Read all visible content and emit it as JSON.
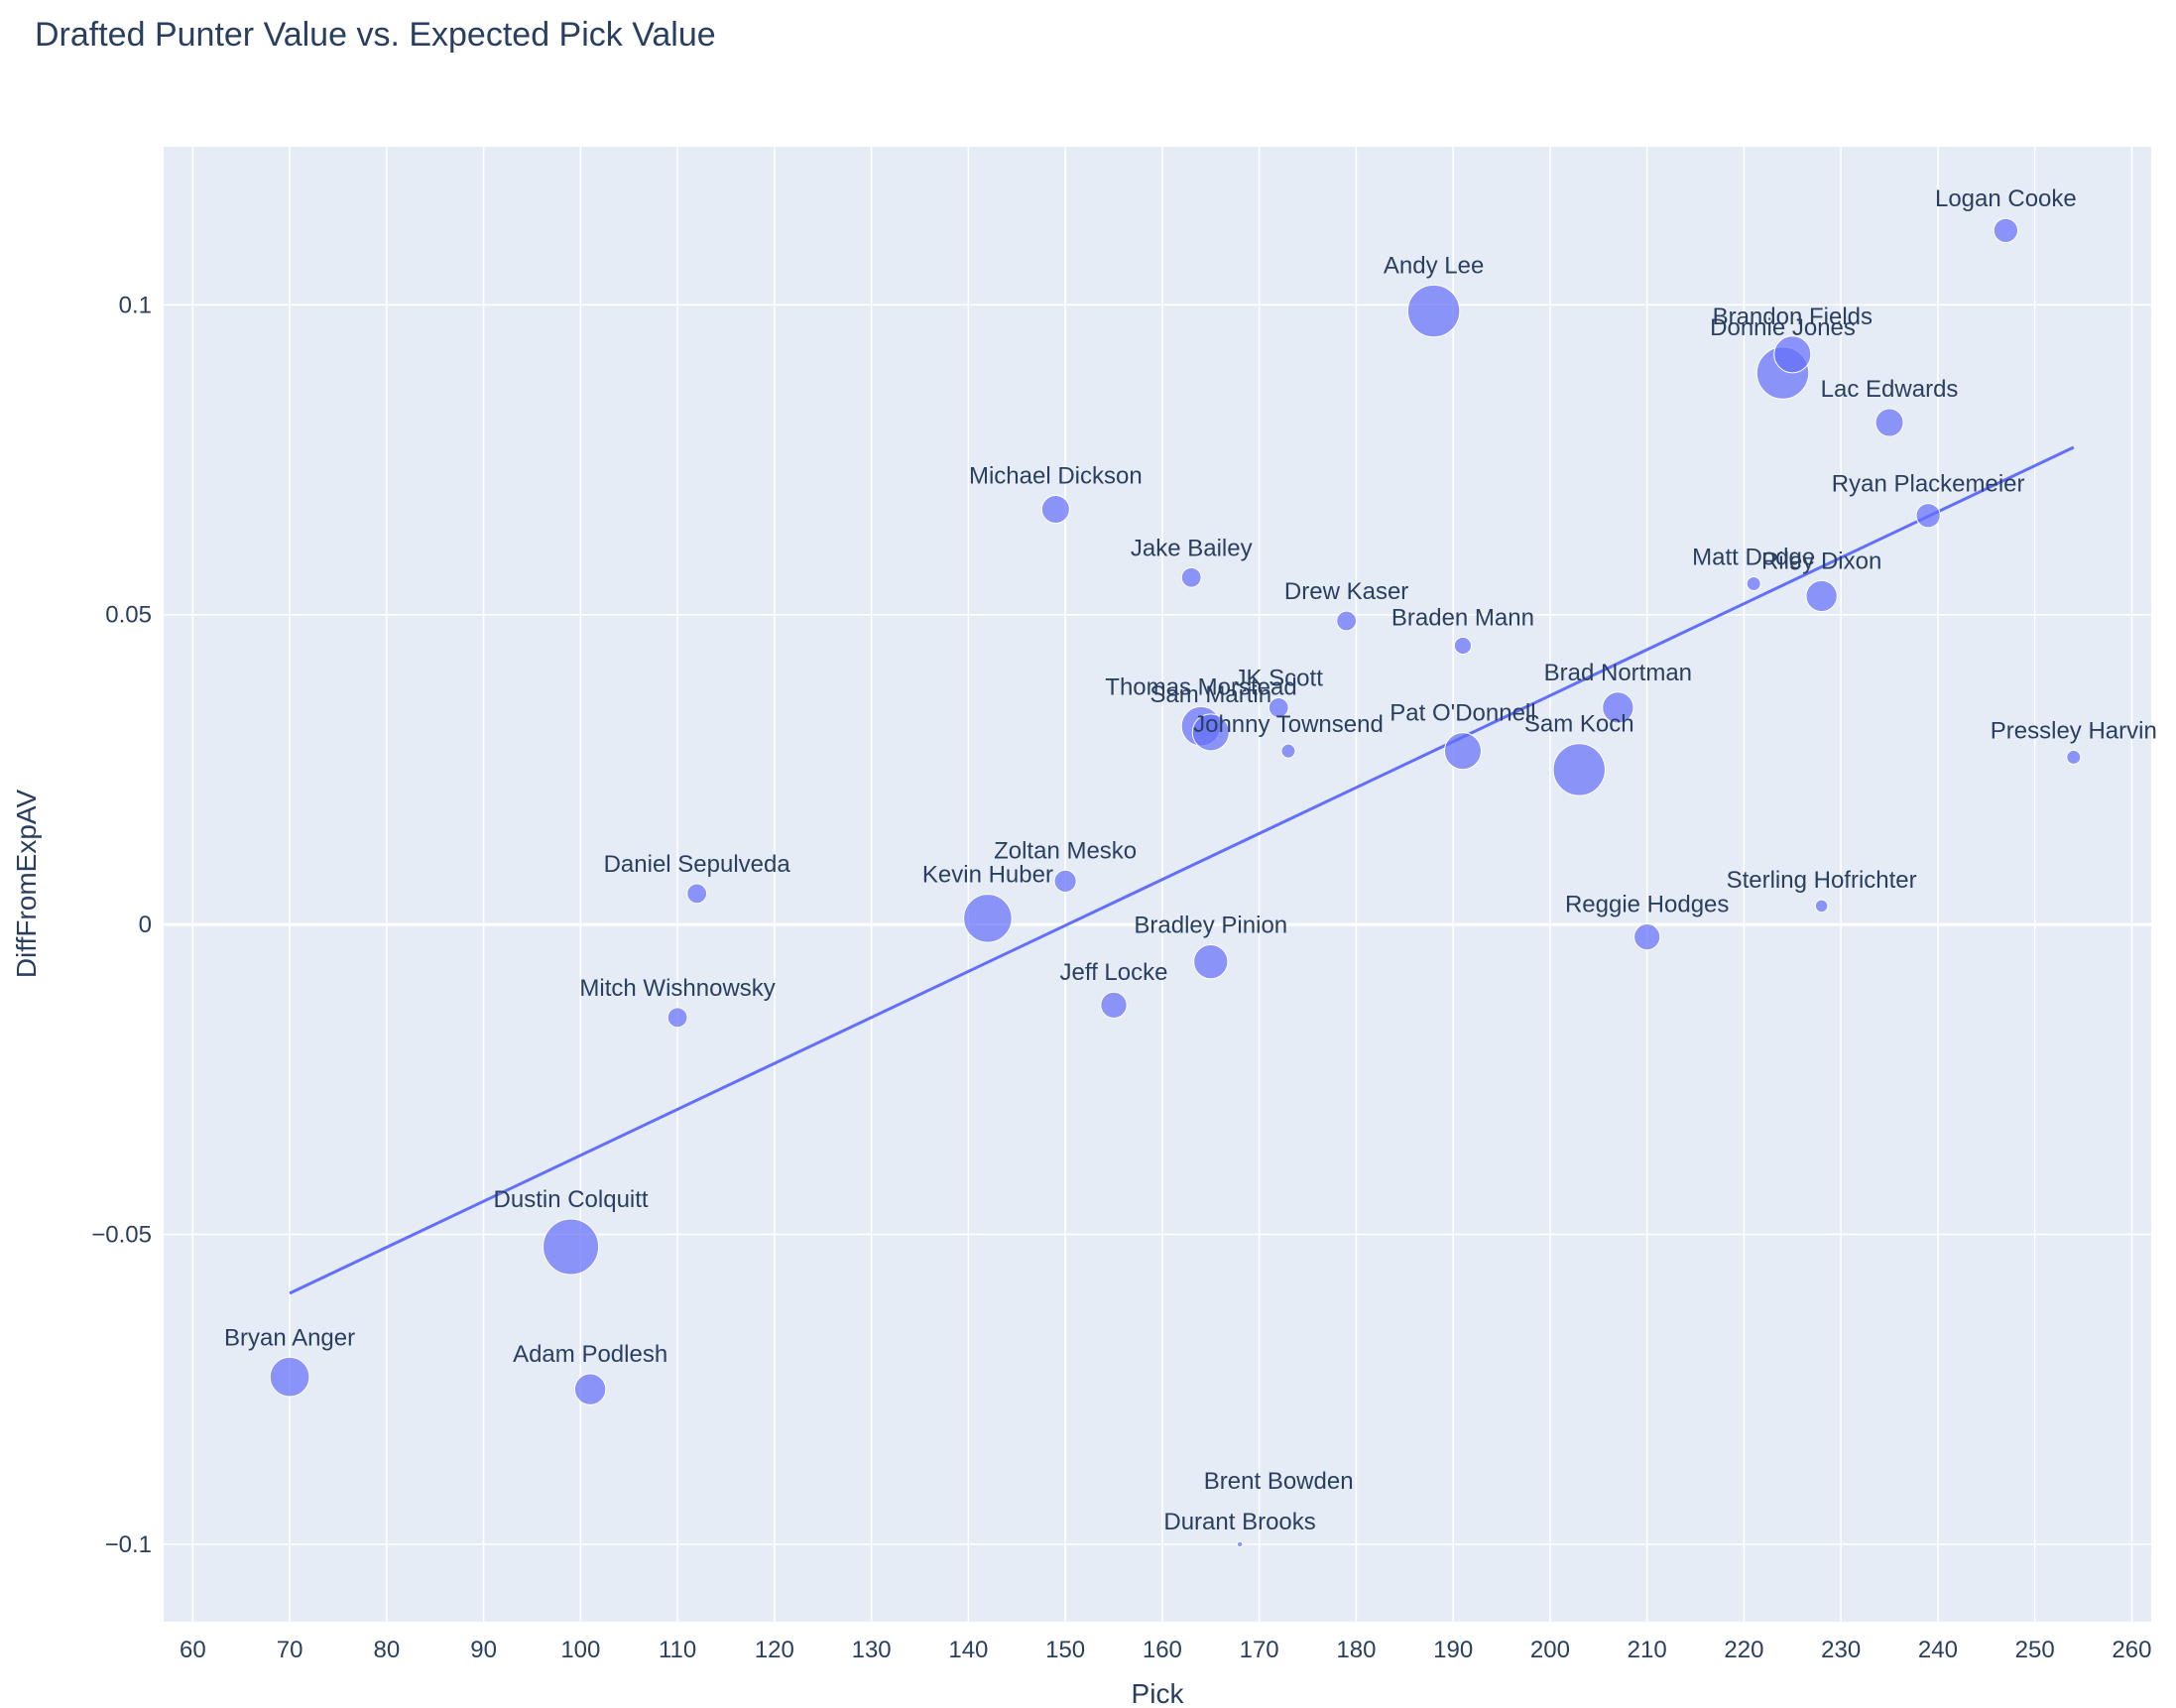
{
  "chart_data": {
    "type": "scatter",
    "title": "Drafted Punter Value vs. Expected Pick Value",
    "xlabel": "Pick",
    "ylabel": "DiffFromExpAV",
    "xlim": [
      57,
      262
    ],
    "ylim": [
      -0.1125,
      0.1255
    ],
    "x_ticks": [
      60,
      70,
      80,
      90,
      100,
      110,
      120,
      130,
      140,
      150,
      160,
      170,
      180,
      190,
      200,
      210,
      220,
      230,
      240,
      250,
      260
    ],
    "y_ticks": [
      {
        "value": 0.1,
        "label": "0.1"
      },
      {
        "value": 0.05,
        "label": "0.05"
      },
      {
        "value": 0,
        "label": "0"
      },
      {
        "value": -0.05,
        "label": "−0.05"
      },
      {
        "value": -0.1,
        "label": "−0.1"
      }
    ],
    "marker_color": "#636efa",
    "trendline_color": "#636efa",
    "trendline": {
      "x": [
        70,
        254
      ],
      "y": [
        -0.0595,
        0.077
      ]
    },
    "note": "Marker size reflects a magnitude value (relative units)",
    "points": [
      {
        "label": "Logan Cooke",
        "x": 247,
        "y": 0.112,
        "size": 3
      },
      {
        "label": "Andy Lee",
        "x": 188,
        "y": 0.099,
        "size": 14
      },
      {
        "label": "Brandon Fields",
        "x": 225,
        "y": 0.092,
        "size": 7
      },
      {
        "label": "Donnie Jones",
        "x": 224,
        "y": 0.089,
        "size": 14
      },
      {
        "label": "Lac Edwards",
        "x": 235,
        "y": 0.081,
        "size": 4
      },
      {
        "label": "Ryan Plackemeier",
        "x": 239,
        "y": 0.066,
        "size": 3
      },
      {
        "label": "Michael Dickson",
        "x": 149,
        "y": 0.067,
        "size": 4
      },
      {
        "label": "Jake Bailey",
        "x": 163,
        "y": 0.056,
        "size": 2
      },
      {
        "label": "Matt Dodge",
        "x": 221,
        "y": 0.055,
        "size": 1
      },
      {
        "label": "Riley Dixon",
        "x": 228,
        "y": 0.053,
        "size": 5
      },
      {
        "label": "Drew Kaser",
        "x": 179,
        "y": 0.049,
        "size": 2
      },
      {
        "label": "Braden Mann",
        "x": 191,
        "y": 0.045,
        "size": 1.5
      },
      {
        "label": "Brad Nortman",
        "x": 207,
        "y": 0.035,
        "size": 5
      },
      {
        "label": "JK Scott",
        "x": 172,
        "y": 0.035,
        "size": 2
      },
      {
        "label": "Thomas Morstead",
        "x": 164,
        "y": 0.032,
        "size": 8
      },
      {
        "label": "Sam Martin",
        "x": 165,
        "y": 0.031,
        "size": 7
      },
      {
        "label": "Johnny Townsend",
        "x": 173,
        "y": 0.028,
        "size": 1
      },
      {
        "label": "Pat O'Donnell",
        "x": 191,
        "y": 0.028,
        "size": 7
      },
      {
        "label": "Sam Koch",
        "x": 203,
        "y": 0.025,
        "size": 14
      },
      {
        "label": "Pressley Harvin",
        "x": 254,
        "y": 0.027,
        "size": 1
      },
      {
        "label": "Daniel Sepulveda",
        "x": 112,
        "y": 0.005,
        "size": 2
      },
      {
        "label": "Zoltan Mesko",
        "x": 150,
        "y": 0.007,
        "size": 2.5
      },
      {
        "label": "Kevin Huber",
        "x": 142,
        "y": 0.001,
        "size": 12
      },
      {
        "label": "Sterling Hofrichter",
        "x": 228,
        "y": 0.003,
        "size": 0.8
      },
      {
        "label": "Reggie Hodges",
        "x": 210,
        "y": -0.002,
        "size": 3.5
      },
      {
        "label": "Bradley Pinion",
        "x": 165,
        "y": -0.006,
        "size": 6
      },
      {
        "label": "Jeff Locke",
        "x": 155,
        "y": -0.013,
        "size": 3.5
      },
      {
        "label": "Mitch Wishnowsky",
        "x": 110,
        "y": -0.015,
        "size": 2
      },
      {
        "label": "Dustin Colquitt",
        "x": 99,
        "y": -0.052,
        "size": 16
      },
      {
        "label": "Bryan Anger",
        "x": 70,
        "y": -0.073,
        "size": 8
      },
      {
        "label": "Adam Podlesh",
        "x": 101,
        "y": -0.075,
        "size": 5
      },
      {
        "label": "Brent Bowden",
        "x": 172,
        "y": -0.093,
        "size": 0
      },
      {
        "label": "Durant Brooks",
        "x": 168,
        "y": -0.1,
        "size": 0.15
      }
    ]
  }
}
